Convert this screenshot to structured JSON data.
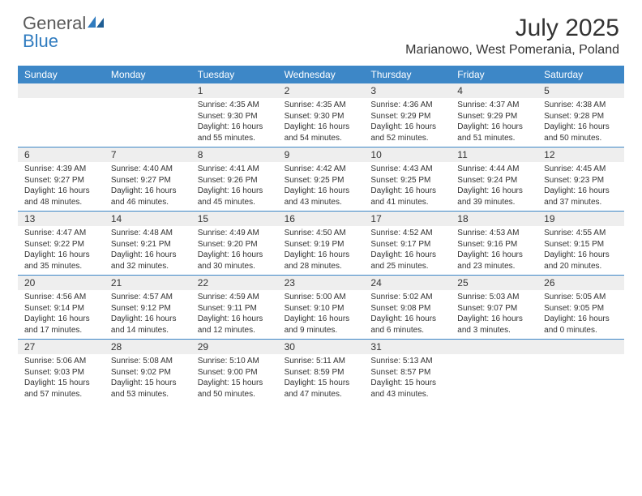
{
  "brand": {
    "general": "General",
    "blue": "Blue"
  },
  "title": {
    "month": "July 2025",
    "location": "Marianowo, West Pomerania, Poland"
  },
  "colors": {
    "header_bg": "#3d87c7",
    "daynum_bg": "#eeeeee",
    "rule": "#3d87c7",
    "text": "#333333",
    "brand_gray": "#5a5a5a",
    "brand_blue": "#2f7bbf"
  },
  "dayNames": [
    "Sunday",
    "Monday",
    "Tuesday",
    "Wednesday",
    "Thursday",
    "Friday",
    "Saturday"
  ],
  "weeks": [
    [
      null,
      null,
      {
        "n": 1,
        "sr": "4:35 AM",
        "ss": "9:30 PM",
        "dl": "16 hours and 55 minutes."
      },
      {
        "n": 2,
        "sr": "4:35 AM",
        "ss": "9:30 PM",
        "dl": "16 hours and 54 minutes."
      },
      {
        "n": 3,
        "sr": "4:36 AM",
        "ss": "9:29 PM",
        "dl": "16 hours and 52 minutes."
      },
      {
        "n": 4,
        "sr": "4:37 AM",
        "ss": "9:29 PM",
        "dl": "16 hours and 51 minutes."
      },
      {
        "n": 5,
        "sr": "4:38 AM",
        "ss": "9:28 PM",
        "dl": "16 hours and 50 minutes."
      }
    ],
    [
      {
        "n": 6,
        "sr": "4:39 AM",
        "ss": "9:27 PM",
        "dl": "16 hours and 48 minutes."
      },
      {
        "n": 7,
        "sr": "4:40 AM",
        "ss": "9:27 PM",
        "dl": "16 hours and 46 minutes."
      },
      {
        "n": 8,
        "sr": "4:41 AM",
        "ss": "9:26 PM",
        "dl": "16 hours and 45 minutes."
      },
      {
        "n": 9,
        "sr": "4:42 AM",
        "ss": "9:25 PM",
        "dl": "16 hours and 43 minutes."
      },
      {
        "n": 10,
        "sr": "4:43 AM",
        "ss": "9:25 PM",
        "dl": "16 hours and 41 minutes."
      },
      {
        "n": 11,
        "sr": "4:44 AM",
        "ss": "9:24 PM",
        "dl": "16 hours and 39 minutes."
      },
      {
        "n": 12,
        "sr": "4:45 AM",
        "ss": "9:23 PM",
        "dl": "16 hours and 37 minutes."
      }
    ],
    [
      {
        "n": 13,
        "sr": "4:47 AM",
        "ss": "9:22 PM",
        "dl": "16 hours and 35 minutes."
      },
      {
        "n": 14,
        "sr": "4:48 AM",
        "ss": "9:21 PM",
        "dl": "16 hours and 32 minutes."
      },
      {
        "n": 15,
        "sr": "4:49 AM",
        "ss": "9:20 PM",
        "dl": "16 hours and 30 minutes."
      },
      {
        "n": 16,
        "sr": "4:50 AM",
        "ss": "9:19 PM",
        "dl": "16 hours and 28 minutes."
      },
      {
        "n": 17,
        "sr": "4:52 AM",
        "ss": "9:17 PM",
        "dl": "16 hours and 25 minutes."
      },
      {
        "n": 18,
        "sr": "4:53 AM",
        "ss": "9:16 PM",
        "dl": "16 hours and 23 minutes."
      },
      {
        "n": 19,
        "sr": "4:55 AM",
        "ss": "9:15 PM",
        "dl": "16 hours and 20 minutes."
      }
    ],
    [
      {
        "n": 20,
        "sr": "4:56 AM",
        "ss": "9:14 PM",
        "dl": "16 hours and 17 minutes."
      },
      {
        "n": 21,
        "sr": "4:57 AM",
        "ss": "9:12 PM",
        "dl": "16 hours and 14 minutes."
      },
      {
        "n": 22,
        "sr": "4:59 AM",
        "ss": "9:11 PM",
        "dl": "16 hours and 12 minutes."
      },
      {
        "n": 23,
        "sr": "5:00 AM",
        "ss": "9:10 PM",
        "dl": "16 hours and 9 minutes."
      },
      {
        "n": 24,
        "sr": "5:02 AM",
        "ss": "9:08 PM",
        "dl": "16 hours and 6 minutes."
      },
      {
        "n": 25,
        "sr": "5:03 AM",
        "ss": "9:07 PM",
        "dl": "16 hours and 3 minutes."
      },
      {
        "n": 26,
        "sr": "5:05 AM",
        "ss": "9:05 PM",
        "dl": "16 hours and 0 minutes."
      }
    ],
    [
      {
        "n": 27,
        "sr": "5:06 AM",
        "ss": "9:03 PM",
        "dl": "15 hours and 57 minutes."
      },
      {
        "n": 28,
        "sr": "5:08 AM",
        "ss": "9:02 PM",
        "dl": "15 hours and 53 minutes."
      },
      {
        "n": 29,
        "sr": "5:10 AM",
        "ss": "9:00 PM",
        "dl": "15 hours and 50 minutes."
      },
      {
        "n": 30,
        "sr": "5:11 AM",
        "ss": "8:59 PM",
        "dl": "15 hours and 47 minutes."
      },
      {
        "n": 31,
        "sr": "5:13 AM",
        "ss": "8:57 PM",
        "dl": "15 hours and 43 minutes."
      },
      null,
      null
    ]
  ],
  "labels": {
    "sunrise": "Sunrise:",
    "sunset": "Sunset:",
    "daylight": "Daylight:"
  }
}
